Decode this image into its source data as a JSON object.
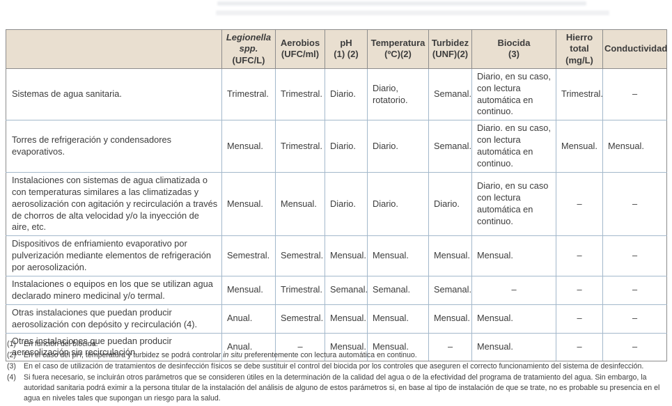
{
  "colors": {
    "header_background": "#e9dfd0",
    "grid_inner": "#a3b8cb",
    "grid_outer": "#8c8c8c",
    "text": "#3c3c3c"
  },
  "table": {
    "columns": [
      {
        "title": "",
        "subtitle": "",
        "italic": false
      },
      {
        "title": "Legionella spp.",
        "subtitle": "(UFC/L)",
        "italic": true
      },
      {
        "title": "Aerobios",
        "subtitle": "(UFC/ml)",
        "italic": false
      },
      {
        "title": "pH",
        "subtitle": "(1) (2)",
        "italic": false
      },
      {
        "title": "Temperatura",
        "subtitle": "(ºC)(2)",
        "italic": false
      },
      {
        "title": "Turbidez",
        "subtitle": "(UNF)(2)",
        "italic": false
      },
      {
        "title": "Biocida",
        "subtitle": "(3)",
        "italic": false
      },
      {
        "title": "Hierro total",
        "subtitle": "(mg/L)",
        "italic": false
      },
      {
        "title": "Conductividad",
        "subtitle": "",
        "italic": false
      }
    ],
    "rows": [
      {
        "label": "Sistemas de agua sanitaria.",
        "cells": [
          "Trimestral.",
          "Trimestral.",
          "Diario.",
          "Diario, rotatorio.",
          "Semanal.",
          "Diario, en su caso, con lectura automática en continuo.",
          "Trimestral.",
          "–"
        ]
      },
      {
        "label": "Torres de refrigeración y condensadores evaporativos.",
        "cells": [
          "Mensual.",
          "Trimestral.",
          "Diario.",
          "Diario.",
          "Semanal.",
          "Diario. en su caso, con lectura automática en continuo.",
          "Mensual.",
          "Mensual."
        ]
      },
      {
        "label": "Instalaciones con sistemas de agua climatizada o con temperaturas similares a las climatizadas y aerosolización con agitación y recirculación a través de chorros de alta velocidad y/o la inyección de aire, etc.",
        "cells": [
          "Mensual.",
          "Mensual.",
          "Diario.",
          "Diario.",
          "Diario.",
          "Diario, en su caso con lectura automática en continuo.",
          "–",
          "–"
        ]
      },
      {
        "label": "Dispositivos de enfriamiento evaporativo por pulverización mediante elementos de refrigeración por aerosolización.",
        "cells": [
          "Semestral.",
          "Semestral.",
          "Mensual.",
          "Mensual.",
          "Mensual.",
          "Mensual.",
          "–",
          "–"
        ]
      },
      {
        "label": "Instalaciones o equipos en los que se utilizan agua declarado minero medicinal y/o termal.",
        "cells": [
          "Mensual.",
          "Trimestral.",
          "Semanal.",
          "Semanal.",
          "Semanal.",
          "–",
          "–",
          "–"
        ]
      },
      {
        "label": "Otras instalaciones que puedan producir aerosolización con depósito y recirculación (4).",
        "cells": [
          "Anual.",
          "Semestral.",
          "Mensual.",
          "Mensual.",
          "Mensual.",
          "Mensual.",
          "–",
          "–"
        ]
      },
      {
        "label": "Otras instalaciones que puedan producir aerosolización sin recirculación.",
        "cells": [
          "Anual.",
          "–",
          "Mensual.",
          "Mensual.",
          "–",
          "Mensual.",
          "–",
          "–"
        ]
      }
    ]
  },
  "footnotes": [
    {
      "num": "(1)",
      "parts": [
        {
          "text": "En función del biocida.",
          "italic": false
        }
      ]
    },
    {
      "num": "(2)",
      "parts": [
        {
          "text": "En el caso del pH, temperatura y turbidez se podrá controlar ",
          "italic": false
        },
        {
          "text": "in situ",
          "italic": true
        },
        {
          "text": " preferentemente con lectura automática en continuo.",
          "italic": false
        }
      ]
    },
    {
      "num": "(3)",
      "parts": [
        {
          "text": "En el caso de utilización de tratamientos de desinfección físicos se debe sustituir el control del biocida por los controles que aseguren el correcto funcionamiento del sistema de desinfección.",
          "italic": false
        }
      ]
    },
    {
      "num": "(4)",
      "parts": [
        {
          "text": "Si fuera necesario, se incluirán otros parámetros que se consideren útiles en la determinación de la calidad del agua o de la efectividad del programa de tratamiento del agua. Sin embargo, la autoridad sanitaria podrá eximir a la persona titular de la instalación del análisis de alguno de estos parámetros si, en base al tipo de instalación de que se trate, no es probable su presencia en el agua en niveles tales que supongan un riesgo para la salud.",
          "italic": false
        }
      ]
    }
  ]
}
